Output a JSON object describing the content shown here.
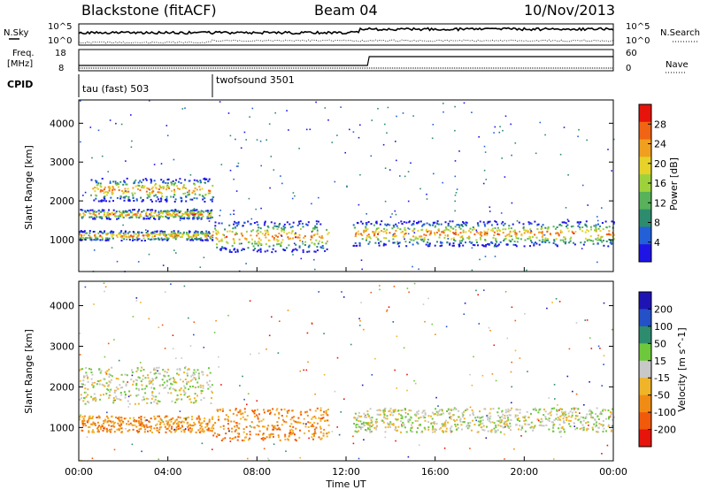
{
  "header": {
    "station": "Blackstone (fitACF)",
    "beam": "Beam 04",
    "date": "10/Nov/2013"
  },
  "strip_labels": {
    "nsky": "N.Sky",
    "nsearch": "N.Search",
    "freq_line1": "Freq.",
    "freq_line2": "[MHz]",
    "nave": "Nave",
    "cpid": "CPID",
    "nsky_ticks": [
      "10^5",
      "10^0"
    ],
    "nsearch_ticks": [
      "10^5",
      "10^0"
    ],
    "freq_ticks": [
      "18",
      "8"
    ],
    "nave_ticks": [
      "60",
      "0"
    ],
    "cpid_segments": [
      {
        "label": "tau (fast) 503",
        "start_hour": 0
      },
      {
        "label": "twofsound 3501",
        "start_hour": 6
      }
    ]
  },
  "chart_data": [
    {
      "type": "heatmap",
      "title": "",
      "xlabel": "",
      "ylabel": "Slant Range [km]",
      "x_range_hours": [
        0,
        24
      ],
      "ylim": [
        180,
        4600
      ],
      "y_ticks": [
        "1000",
        "2000",
        "3000",
        "4000"
      ],
      "colorbar": {
        "label": "Power [dB]",
        "ticks": [
          "4",
          "8",
          "12",
          "16",
          "20",
          "24",
          "28"
        ],
        "range": [
          0,
          32
        ],
        "colors": [
          "#1e14e6",
          "#2360d8",
          "#2d8c6e",
          "#57b25a",
          "#9ed23a",
          "#e6d228",
          "#f0a01e",
          "#f06414",
          "#e6140a"
        ]
      },
      "echo_bands": [
        {
          "hours": [
            0,
            6
          ],
          "range_km": [
            1000,
            1250
          ]
        },
        {
          "hours": [
            0,
            6
          ],
          "range_km": [
            1550,
            1800
          ]
        },
        {
          "hours": [
            0.5,
            6
          ],
          "range_km": [
            2000,
            2600
          ]
        },
        {
          "hours": [
            6,
            11.2
          ],
          "range_km": [
            700,
            1500
          ]
        },
        {
          "hours": [
            12.3,
            24
          ],
          "range_km": [
            850,
            1500
          ]
        }
      ]
    },
    {
      "type": "heatmap",
      "title": "",
      "xlabel": "Time UT",
      "ylabel": "Slant Range [km]",
      "x_range_hours": [
        0,
        24
      ],
      "x_ticks": [
        "00:00",
        "04:00",
        "08:00",
        "12:00",
        "16:00",
        "20:00",
        "00:00"
      ],
      "ylim": [
        180,
        4600
      ],
      "y_ticks": [
        "1000",
        "2000",
        "3000",
        "4000"
      ],
      "colorbar": {
        "label": "Velocity [m s^-1]",
        "ticks": [
          "200",
          "100",
          "50",
          "15",
          "-15",
          "-50",
          "-100",
          "-200"
        ],
        "colors": [
          "#1e14b4",
          "#2450c8",
          "#2d8c6e",
          "#6ec83c",
          "#c8c8c8",
          "#f0b428",
          "#f08c14",
          "#f05a0a",
          "#e6140a"
        ]
      },
      "echo_bands": [
        {
          "hours": [
            0,
            6
          ],
          "range_km": [
            900,
            1300
          ],
          "sign": "negative"
        },
        {
          "hours": [
            0,
            6
          ],
          "range_km": [
            1600,
            2500
          ],
          "sign": "near-zero"
        },
        {
          "hours": [
            6,
            11.2
          ],
          "range_km": [
            700,
            1500
          ],
          "sign": "negative"
        },
        {
          "hours": [
            12.3,
            24
          ],
          "range_km": [
            900,
            1500
          ],
          "sign": "near-zero"
        }
      ]
    }
  ]
}
